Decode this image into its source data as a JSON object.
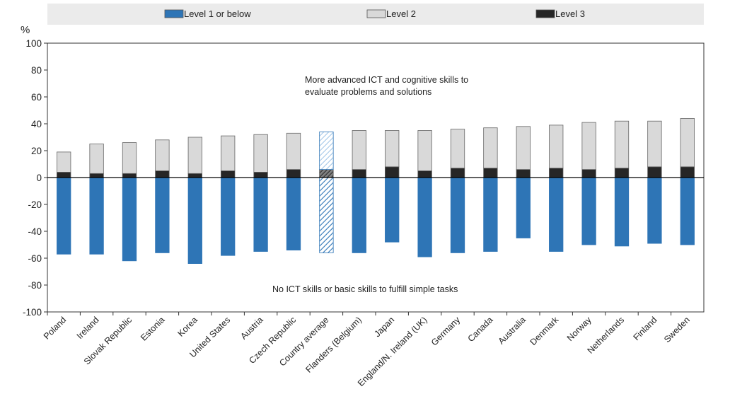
{
  "chart_data": {
    "type": "bar",
    "stacked": true,
    "y_unit": "%",
    "ylim": [
      -100,
      100
    ],
    "yticks": [
      100,
      80,
      60,
      40,
      20,
      0,
      -20,
      -40,
      -60,
      -80,
      -100
    ],
    "grid": false,
    "legend_position": "top",
    "categories": [
      "Poland",
      "Ireland",
      "Slovak Republic",
      "Estonia",
      "Korea",
      "United States",
      "Austria",
      "Czech Republic",
      "Country average",
      "Flanders (Belgium)",
      "Japan",
      "England/N. Ireland (UK)",
      "Germany",
      "Canada",
      "Australia",
      "Denmark",
      "Norway",
      "Netherlands",
      "Finland",
      "Sweden"
    ],
    "highlight_category": "Country average",
    "series": [
      {
        "name": "Level 1 or below",
        "color": "#2e75b6",
        "values": [
          -57,
          -57,
          -62,
          -56,
          -64,
          -58,
          -55,
          -54,
          -56,
          -56,
          -48,
          -59,
          -56,
          -55,
          -45,
          -55,
          -50,
          -51,
          -49,
          -50
        ]
      },
      {
        "name": "Level 2",
        "color": "#d9d9d9",
        "values": [
          15,
          22,
          23,
          23,
          27,
          26,
          28,
          27,
          28,
          29,
          27,
          30,
          29,
          30,
          32,
          32,
          35,
          35,
          34,
          36
        ]
      },
      {
        "name": "Level 3",
        "color": "#262626",
        "values": [
          4,
          3,
          3,
          5,
          3,
          5,
          4,
          6,
          6,
          6,
          8,
          5,
          7,
          7,
          6,
          7,
          6,
          7,
          8,
          8
        ]
      }
    ],
    "annotations": {
      "upper": [
        "More advanced  ICT and cognitive skills to",
        "evaluate problems and solutions"
      ],
      "lower": "No ICT skills or basic skills to fulfill simple tasks"
    }
  }
}
